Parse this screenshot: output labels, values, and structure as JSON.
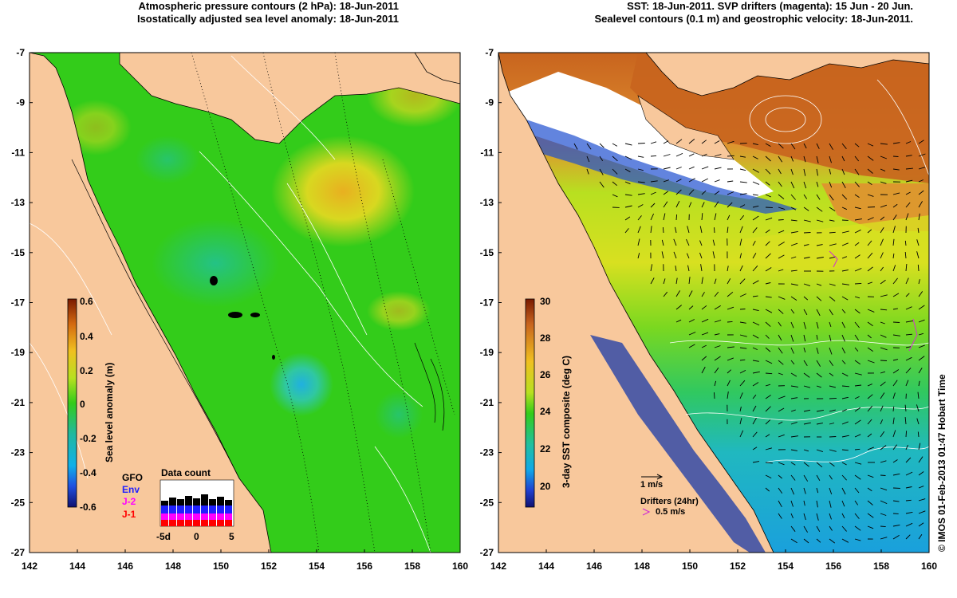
{
  "left_panel": {
    "title_line1": "Atmospheric pressure contours (2 hPa): 18-Jun-2011",
    "title_line2": "Isostatically adjusted sea level anomaly: 18-Jun-2011",
    "colorbar": {
      "label": "Sea level anomaly (m)",
      "ticks": [
        "0.6",
        "0.4",
        "0.2",
        "0",
        "-0.2",
        "-0.4",
        "-0.6"
      ]
    },
    "data_count": {
      "title": "Data count",
      "xticks": [
        "-5d",
        "0",
        "5"
      ],
      "legend": [
        "GFO",
        "Env",
        "J-2",
        "J-1"
      ],
      "legend_colors": [
        "#000000",
        "#2020ff",
        "#ff00ff",
        "#ff0000"
      ]
    }
  },
  "right_panel": {
    "title_line1": "SST: 18-Jun-2011. SVP drifters (magenta): 15 Jun - 20 Jun.",
    "title_line2": "Sealevel contours (0.1 m) and geostrophic velocity: 18-Jun-2011.",
    "colorbar": {
      "label": "3-day SST composite (deg C)",
      "ticks": [
        "30",
        "28",
        "26",
        "24",
        "22",
        "20"
      ]
    },
    "velocity_scale": "1 m/s",
    "drifters_label": "Drifters (24hr)",
    "drifter_speed": "0.5 m/s"
  },
  "axes": {
    "y_ticks": [
      "-7",
      "-9",
      "-11",
      "-13",
      "-15",
      "-17",
      "-19",
      "-21",
      "-23",
      "-25",
      "-27"
    ],
    "x_ticks": [
      "142",
      "144",
      "146",
      "148",
      "150",
      "152",
      "154",
      "156",
      "158",
      "160"
    ]
  },
  "credit": "© IMOS 01-Feb-2013 01:47 Hobart Time",
  "colors": {
    "land": "#f8c89c",
    "sla_base": "#33cc1a",
    "sst_warm": "#c8641e",
    "sst_cool": "#1aa0dc"
  }
}
